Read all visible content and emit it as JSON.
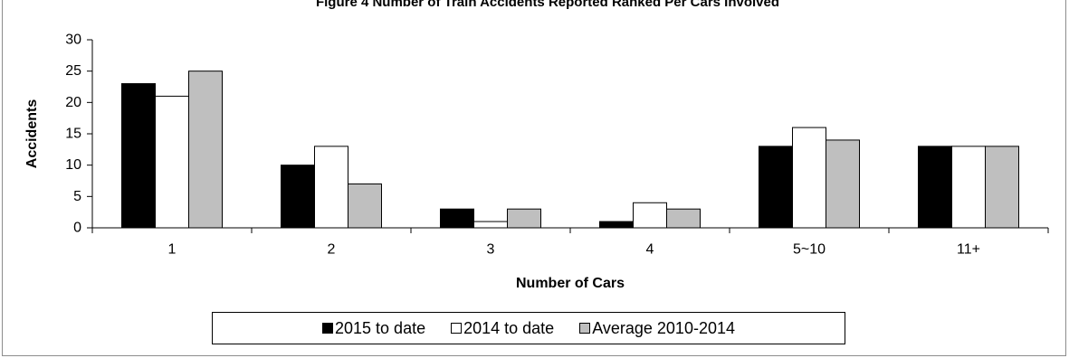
{
  "colors": {
    "series_2015": "#000000",
    "series_2014": "#ffffff",
    "series_avg": "#bfbfbf",
    "bar_outline": "#000000",
    "axis": "#000000"
  },
  "chart_data": {
    "type": "bar",
    "title": "Figure 4 Number of Train Accidents Reported Ranked Per Cars Involved",
    "xlabel": "Number of Cars",
    "ylabel": "Accidents",
    "categories": [
      "1",
      "2",
      "3",
      "4",
      "5~10",
      "11+"
    ],
    "series": [
      {
        "name": "2015 to date",
        "values": [
          23,
          10,
          3,
          1,
          13,
          13
        ]
      },
      {
        "name": "2014 to date",
        "values": [
          21,
          13,
          1,
          4,
          16,
          13
        ]
      },
      {
        "name": "Average 2010-2014",
        "values": [
          25,
          7,
          3,
          3,
          14,
          13
        ]
      }
    ],
    "ylim": [
      0,
      30
    ],
    "yticks": [
      0,
      5,
      10,
      15,
      20,
      25,
      30
    ],
    "grid": false,
    "legend_position": "bottom"
  }
}
